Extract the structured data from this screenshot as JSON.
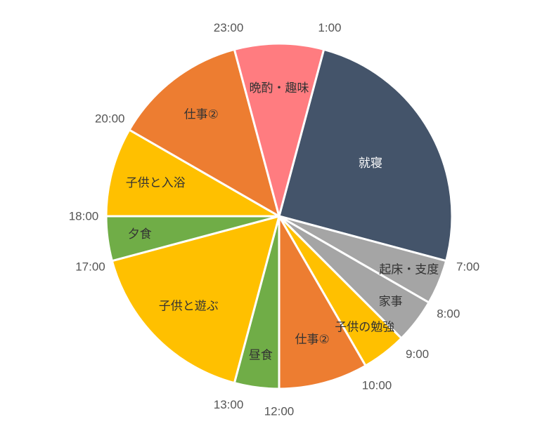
{
  "chart_data": {
    "type": "pie",
    "unit": "hours",
    "start_time": "1:00",
    "direction": "clockwise",
    "slices": [
      {
        "label": "就寝",
        "start": "1:00",
        "end": "7:00",
        "hours": 6,
        "color": "#44546a",
        "label_color": "#ffffff"
      },
      {
        "label": "起床・支度",
        "start": "7:00",
        "end": "8:00",
        "hours": 1,
        "color": "#a5a5a5",
        "label_color": "#333333"
      },
      {
        "label": "家事",
        "start": "8:00",
        "end": "9:00",
        "hours": 1,
        "color": "#a5a5a5",
        "label_color": "#333333"
      },
      {
        "label": "子供の勉強",
        "start": "9:00",
        "end": "10:00",
        "hours": 1,
        "color": "#ffc000",
        "label_color": "#333333"
      },
      {
        "label": "仕事②",
        "start": "10:00",
        "end": "12:00",
        "hours": 2,
        "color": "#ed7d31",
        "label_color": "#333333"
      },
      {
        "label": "昼食",
        "start": "12:00",
        "end": "13:00",
        "hours": 1,
        "color": "#70ad47",
        "label_color": "#333333"
      },
      {
        "label": "子供と遊ぶ",
        "start": "13:00",
        "end": "17:00",
        "hours": 4,
        "color": "#ffc000",
        "label_color": "#333333"
      },
      {
        "label": "夕食",
        "start": "17:00",
        "end": "18:00",
        "hours": 1,
        "color": "#70ad47",
        "label_color": "#333333"
      },
      {
        "label": "子供と入浴",
        "start": "18:00",
        "end": "20:00",
        "hours": 2,
        "color": "#ffc000",
        "label_color": "#333333"
      },
      {
        "label": "仕事②",
        "start": "20:00",
        "end": "23:00",
        "hours": 3,
        "color": "#ed7d31",
        "label_color": "#333333"
      },
      {
        "label": "晩酌・趣味",
        "start": "23:00",
        "end": "1:00",
        "hours": 2,
        "color": "#ff7c80",
        "label_color": "#333333"
      }
    ],
    "time_labels": [
      "1:00",
      "7:00",
      "8:00",
      "9:00",
      "10:00",
      "12:00",
      "13:00",
      "17:00",
      "18:00",
      "20:00",
      "23:00"
    ]
  }
}
